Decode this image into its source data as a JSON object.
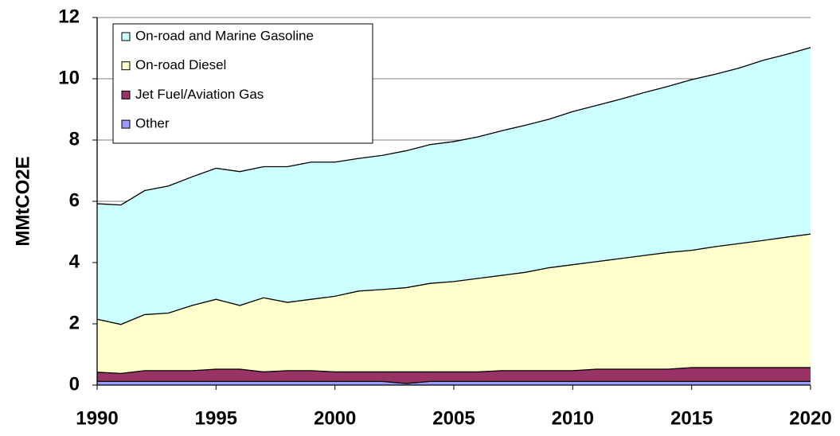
{
  "chart_data": {
    "type": "stacked-area",
    "y_label": "MMtCO2E",
    "x": [
      1990,
      1991,
      1992,
      1993,
      1994,
      1995,
      1996,
      1997,
      1998,
      1999,
      2000,
      2001,
      2002,
      2003,
      2004,
      2005,
      2006,
      2007,
      2008,
      2009,
      2010,
      2011,
      2012,
      2013,
      2014,
      2015,
      2016,
      2017,
      2018,
      2019,
      2020
    ],
    "series": [
      {
        "name": "On-road and Marine Gasoline",
        "color": "#ccffff",
        "values": [
          3.77,
          3.9,
          4.05,
          4.15,
          4.2,
          4.28,
          4.37,
          4.28,
          4.43,
          4.48,
          4.38,
          4.33,
          4.38,
          4.47,
          4.53,
          4.57,
          4.62,
          4.72,
          4.8,
          4.85,
          5.0,
          5.1,
          5.2,
          5.32,
          5.42,
          5.57,
          5.63,
          5.73,
          5.88,
          5.97,
          6.09
        ]
      },
      {
        "name": "On-road Diesel",
        "color": "#ffffcc",
        "values": [
          1.73,
          1.6,
          1.83,
          1.88,
          2.13,
          2.28,
          2.08,
          2.42,
          2.23,
          2.33,
          2.47,
          2.64,
          2.69,
          2.75,
          2.89,
          2.95,
          3.05,
          3.11,
          3.21,
          3.36,
          3.46,
          3.51,
          3.61,
          3.71,
          3.81,
          3.83,
          3.95,
          4.05,
          4.15,
          4.26,
          4.36
        ]
      },
      {
        "name": "Jet Fuel/Aviation Gas",
        "color": "#993366",
        "values": [
          0.3,
          0.26,
          0.35,
          0.35,
          0.35,
          0.4,
          0.4,
          0.31,
          0.35,
          0.35,
          0.31,
          0.31,
          0.31,
          0.38,
          0.31,
          0.31,
          0.31,
          0.35,
          0.35,
          0.35,
          0.35,
          0.4,
          0.4,
          0.4,
          0.4,
          0.45,
          0.45,
          0.45,
          0.45,
          0.45,
          0.45
        ]
      },
      {
        "name": "Other",
        "color": "#9999ff",
        "values": [
          0.12,
          0.12,
          0.12,
          0.12,
          0.12,
          0.12,
          0.12,
          0.12,
          0.12,
          0.12,
          0.12,
          0.12,
          0.12,
          0.05,
          0.12,
          0.12,
          0.12,
          0.12,
          0.12,
          0.12,
          0.12,
          0.12,
          0.12,
          0.12,
          0.12,
          0.12,
          0.12,
          0.12,
          0.12,
          0.12,
          0.12
        ]
      }
    ],
    "xlim": [
      1990,
      2020
    ],
    "xticks": [
      1990,
      1995,
      2000,
      2005,
      2010,
      2015,
      2020
    ],
    "ylim": [
      0,
      12
    ],
    "yticks": [
      0,
      2,
      4,
      6,
      8,
      10,
      12
    ],
    "grid": true,
    "legend": "upper-left"
  }
}
